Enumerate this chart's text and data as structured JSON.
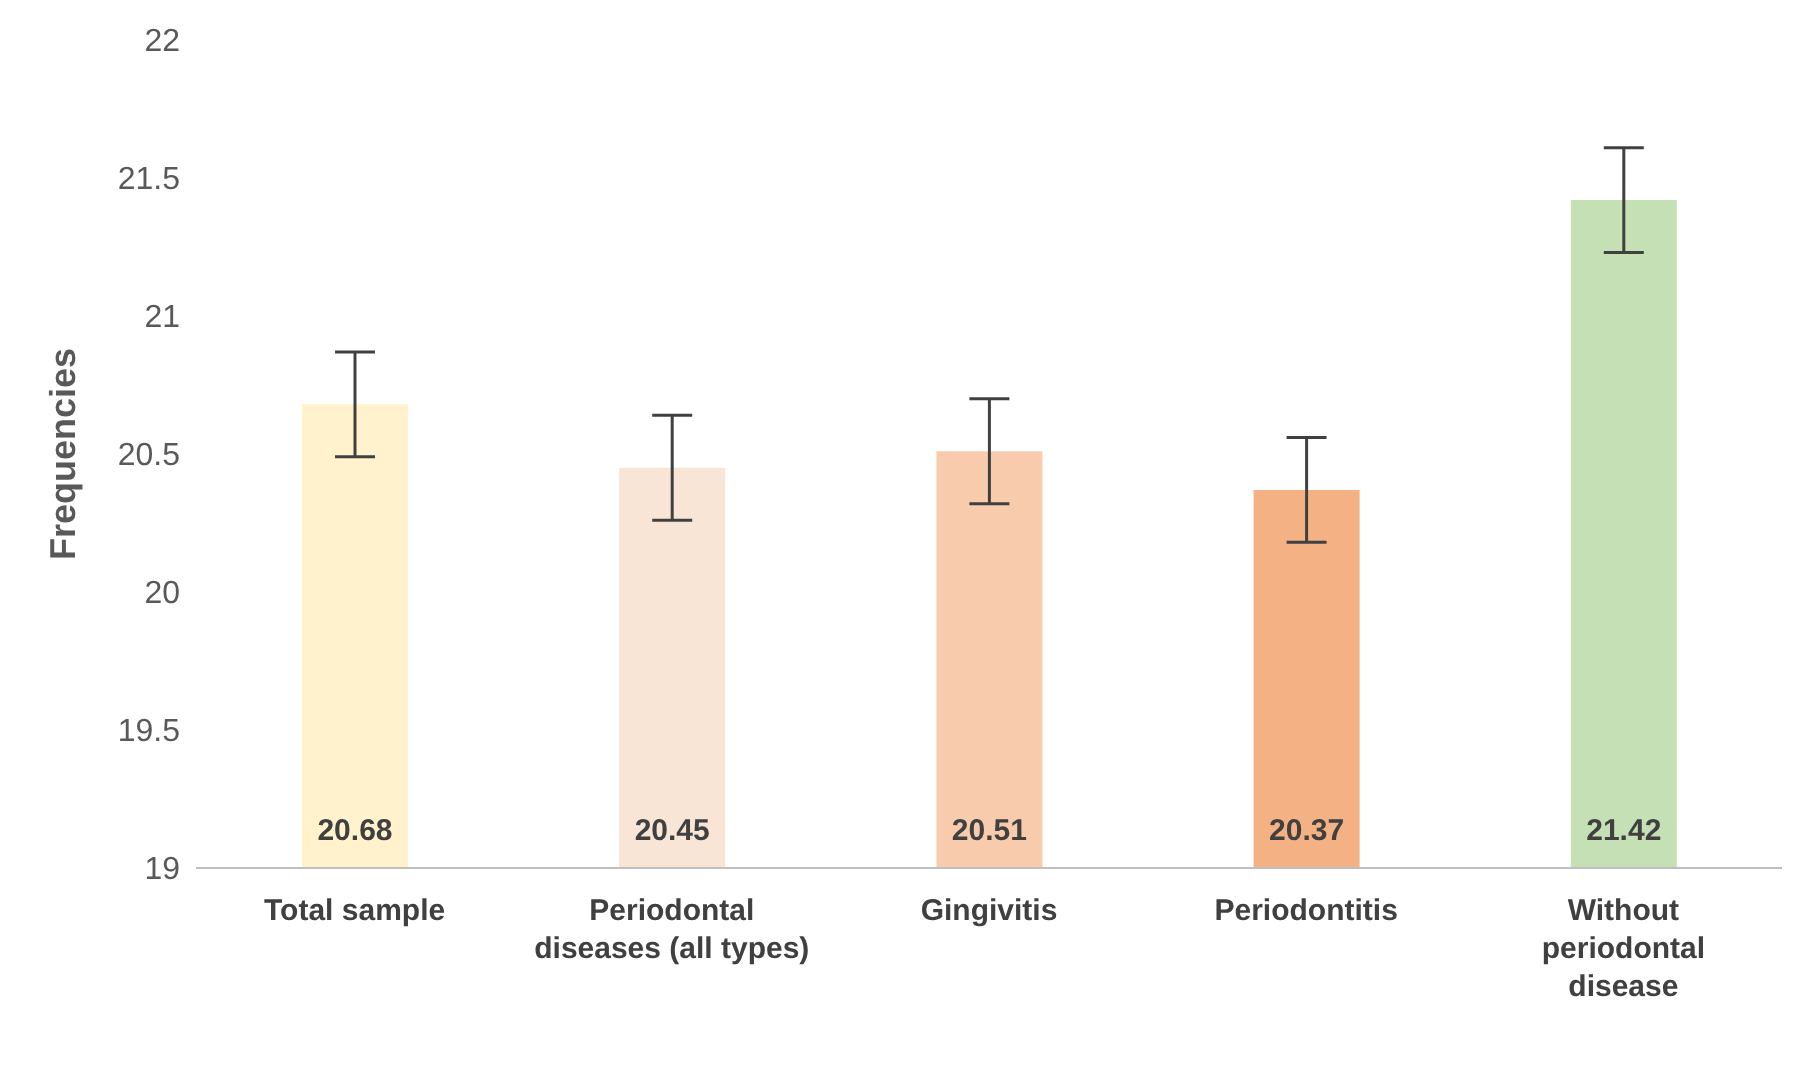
{
  "chart_data": {
    "type": "bar",
    "ylabel": "Frequencies",
    "categories": [
      "Total sample",
      "Periodontal diseases (all types)",
      "Gingivitis",
      "Periodontitis",
      "Without periodontal disease"
    ],
    "values": [
      20.68,
      20.45,
      20.51,
      20.37,
      21.42
    ],
    "colors": [
      "#fff2cc",
      "#f8e5d6",
      "#f8cbad",
      "#f4b183",
      "#c5e0b4"
    ],
    "errors": [
      0.19,
      0.19,
      0.19,
      0.19,
      0.19
    ],
    "ylim": [
      19,
      22
    ],
    "yticks": [
      19,
      19.5,
      20,
      20.5,
      21,
      21.5,
      22
    ],
    "grid": false,
    "legend": false,
    "data_labels": true
  }
}
